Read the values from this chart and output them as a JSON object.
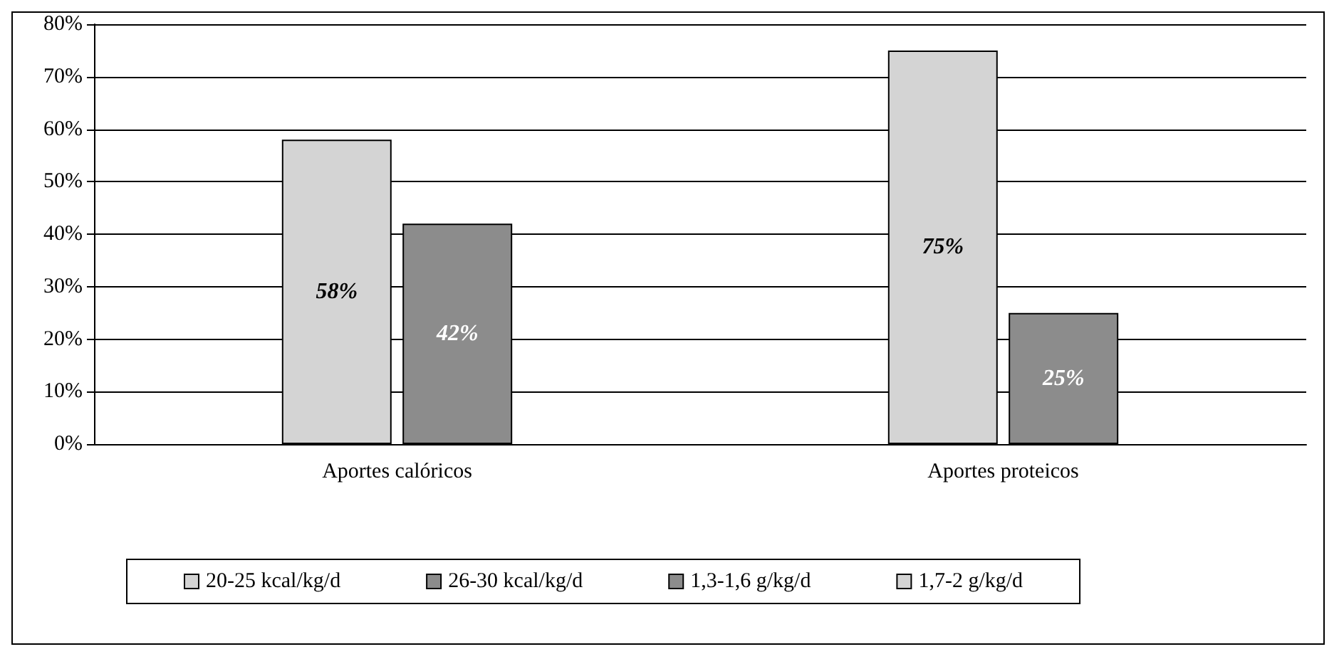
{
  "chart_data": {
    "type": "bar",
    "categories": [
      "Aportes calóricos",
      "Aportes proteicos"
    ],
    "series": [
      {
        "name": "20-25 kcal/kg/d",
        "color": "#d4d4d4",
        "values": [
          58,
          null
        ],
        "value_labels": [
          "58%",
          null
        ]
      },
      {
        "name": "26-30 kcal/kg/d",
        "color": "#8c8c8c",
        "values": [
          42,
          null
        ],
        "value_labels": [
          "42%",
          null
        ]
      },
      {
        "name": "1,3-1,6 g/kg/d",
        "color": "#8c8c8c",
        "values": [
          null,
          25
        ],
        "value_labels": [
          null,
          "25%"
        ]
      },
      {
        "name": "1,7-2 g/kg/d",
        "color": "#d4d4d4",
        "values": [
          null,
          75
        ],
        "value_labels": [
          null,
          "75%"
        ]
      }
    ],
    "ylim": [
      0,
      80
    ],
    "yticks": [
      {
        "value": 0,
        "label": "0%"
      },
      {
        "value": 10,
        "label": "10%"
      },
      {
        "value": 20,
        "label": "20%"
      },
      {
        "value": 30,
        "label": "30%"
      },
      {
        "value": 40,
        "label": "40%"
      },
      {
        "value": 50,
        "label": "50%"
      },
      {
        "value": 60,
        "label": "60%"
      },
      {
        "value": 70,
        "label": "70%"
      },
      {
        "value": 80,
        "label": "80%"
      }
    ],
    "grid": "y",
    "legend": "bottom"
  }
}
